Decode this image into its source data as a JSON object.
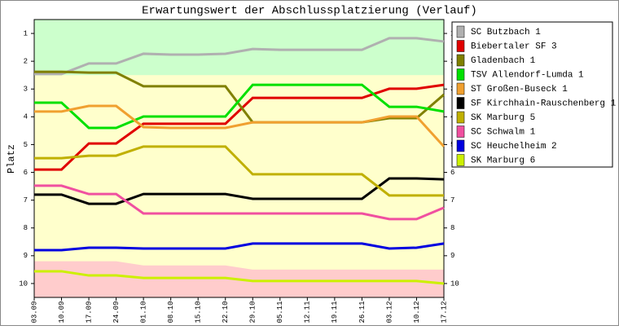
{
  "chart_data": {
    "type": "line",
    "title": "Erwartungswert der Abschlussplatzierung (Verlauf)",
    "y_label": "Platz",
    "categories": [
      "03.09",
      "10.09",
      "17.09",
      "24.09",
      "01.10",
      "08.10",
      "15.10",
      "22.10",
      "29.10",
      "05.11",
      "12.11",
      "19.11",
      "26.11",
      "03.12",
      "10.12",
      "17.12"
    ],
    "ylim": [
      10.5,
      0.5
    ],
    "yticks": [
      1,
      2,
      3,
      4,
      5,
      6,
      7,
      8,
      9,
      10
    ],
    "promotion_limit": 2.5,
    "relegation_limit": [
      9.2,
      9.2,
      9.2,
      9.2,
      9.35,
      9.35,
      9.35,
      9.35,
      9.5,
      9.5,
      9.5,
      9.5,
      9.5,
      9.5,
      9.5,
      9.5
    ],
    "legend": "right",
    "series": [
      {
        "name": "SC Butzbach 1",
        "color": "#b0b0b0",
        "values": [
          2.46,
          2.46,
          2.08,
          2.08,
          1.73,
          1.76,
          1.76,
          1.73,
          1.56,
          1.59,
          1.59,
          1.59,
          1.59,
          1.17,
          1.17,
          1.29
        ]
      },
      {
        "name": "Biebertaler SF 3",
        "color": "#e00000",
        "values": [
          5.9,
          5.9,
          4.96,
          4.96,
          4.25,
          4.25,
          4.25,
          4.25,
          3.32,
          3.32,
          3.32,
          3.32,
          3.32,
          2.99,
          2.99,
          2.85
        ]
      },
      {
        "name": "Gladenbach 1",
        "color": "#808000",
        "values": [
          2.38,
          2.38,
          2.41,
          2.41,
          2.9,
          2.9,
          2.9,
          2.9,
          4.2,
          4.2,
          4.2,
          4.2,
          4.2,
          4.05,
          4.05,
          3.2
        ]
      },
      {
        "name": "TSV Allendorf-Lumda 1",
        "color": "#00e000",
        "values": [
          3.49,
          3.49,
          4.4,
          4.4,
          3.99,
          3.99,
          3.99,
          3.99,
          2.85,
          2.85,
          2.85,
          2.85,
          2.85,
          3.64,
          3.64,
          3.81
        ]
      },
      {
        "name": "ST Großen-Buseck 1",
        "color": "#f0a030",
        "values": [
          3.81,
          3.81,
          3.61,
          3.61,
          4.37,
          4.4,
          4.4,
          4.4,
          4.2,
          4.2,
          4.2,
          4.2,
          4.2,
          3.99,
          3.99,
          5.07
        ]
      },
      {
        "name": "SF Kirchhain-Rauschenberg 1",
        "color": "#000000",
        "values": [
          6.8,
          6.8,
          7.13,
          7.13,
          6.78,
          6.78,
          6.78,
          6.78,
          6.95,
          6.95,
          6.95,
          6.95,
          6.95,
          6.22,
          6.22,
          6.25
        ]
      },
      {
        "name": "SK Marburg 5",
        "color": "#c0b000",
        "values": [
          5.49,
          5.49,
          5.4,
          5.4,
          5.07,
          5.07,
          5.07,
          5.07,
          6.07,
          6.07,
          6.07,
          6.07,
          6.07,
          6.83,
          6.83,
          6.83
        ]
      },
      {
        "name": "SC Schwalm 1",
        "color": "#f050a0",
        "values": [
          6.48,
          6.48,
          6.78,
          6.78,
          7.48,
          7.48,
          7.48,
          7.48,
          7.48,
          7.48,
          7.48,
          7.48,
          7.48,
          7.68,
          7.68,
          7.27
        ]
      },
      {
        "name": "SC Heuchelheim 2",
        "color": "#0000e0",
        "values": [
          8.8,
          8.8,
          8.71,
          8.71,
          8.74,
          8.74,
          8.74,
          8.74,
          8.56,
          8.56,
          8.56,
          8.56,
          8.56,
          8.74,
          8.71,
          8.56
        ]
      },
      {
        "name": "SK Marburg 6",
        "color": "#ccf000",
        "values": [
          9.56,
          9.56,
          9.71,
          9.71,
          9.8,
          9.8,
          9.8,
          9.8,
          9.91,
          9.91,
          9.91,
          9.91,
          9.91,
          9.91,
          9.91,
          10.0
        ]
      }
    ]
  }
}
